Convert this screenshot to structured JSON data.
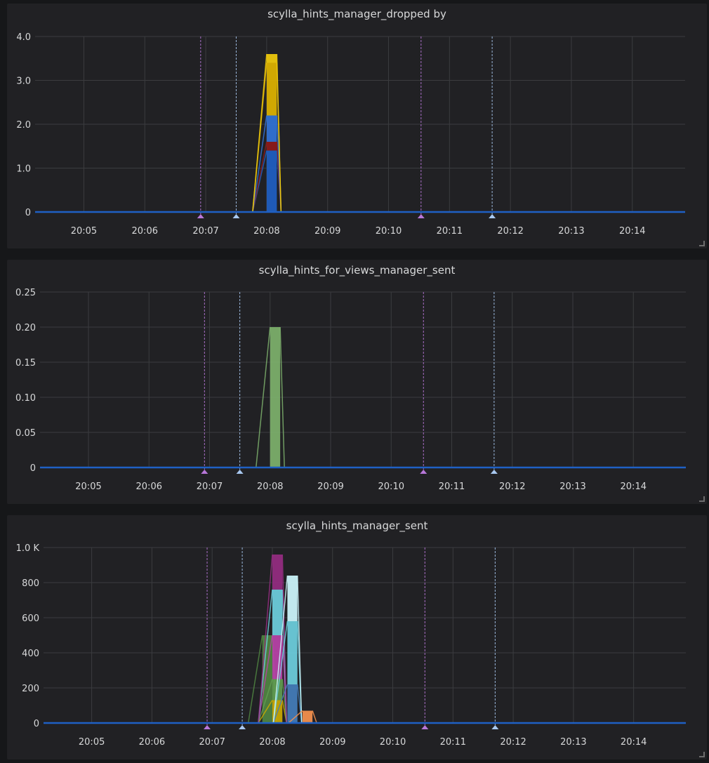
{
  "panels": [
    {
      "title": "scylla_hints_manager_dropped by"
    },
    {
      "title": "scylla_hints_for_views_manager_sent"
    },
    {
      "title": "scylla_hints_manager_sent"
    }
  ],
  "colors": {
    "panel_bg": "#212124",
    "page_bg": "#161719",
    "grid": "#3b3c3f",
    "text": "#d8d9da",
    "baseline": "#1f60c4",
    "annotation_purple": "#b877d9",
    "annotation_blue": "#a8c8f0"
  },
  "chart_data": [
    {
      "type": "area",
      "title": "scylla_hints_manager_dropped by",
      "x_ticks": [
        "20:05",
        "20:06",
        "20:07",
        "20:08",
        "20:09",
        "20:10",
        "20:11",
        "20:12",
        "20:13",
        "20:14"
      ],
      "y_ticks": [
        "0",
        "1.0",
        "2.0",
        "3.0",
        "4.0"
      ],
      "ylim": [
        0,
        4.0
      ],
      "xlim": [
        "20:04:12",
        "20:14:52"
      ],
      "annotations": [
        {
          "time": "20:06:55",
          "color": "purple"
        },
        {
          "time": "20:07:30",
          "color": "blue"
        },
        {
          "time": "20:10:32",
          "color": "purple"
        },
        {
          "time": "20:11:42",
          "color": "blue"
        }
      ],
      "bands": [
        {
          "start": "20:08:00",
          "end": "20:08:10",
          "from": 0,
          "to": 1.4,
          "color": "#1f60c4"
        },
        {
          "start": "20:08:00",
          "end": "20:08:10",
          "from": 1.4,
          "to": 1.6,
          "color": "#8f1a1a"
        },
        {
          "start": "20:08:00",
          "end": "20:08:10",
          "from": 1.6,
          "to": 2.2,
          "color": "#3274d9"
        },
        {
          "start": "20:08:00",
          "end": "20:08:10",
          "from": 2.2,
          "to": 3.4,
          "color": "#e0b400"
        },
        {
          "start": "20:08:00",
          "end": "20:08:10",
          "from": 3.4,
          "to": 3.6,
          "color": "#f2cc0c"
        }
      ]
    },
    {
      "type": "area",
      "title": "scylla_hints_for_views_manager_sent",
      "x_ticks": [
        "20:05",
        "20:06",
        "20:07",
        "20:08",
        "20:09",
        "20:10",
        "20:11",
        "20:12",
        "20:13",
        "20:14"
      ],
      "y_ticks": [
        "0",
        "0.05",
        "0.10",
        "0.15",
        "0.20",
        "0.25"
      ],
      "ylim": [
        0,
        0.25
      ],
      "xlim": [
        "20:04:12",
        "20:14:52"
      ],
      "annotations": [
        {
          "time": "20:06:55",
          "color": "purple"
        },
        {
          "time": "20:07:30",
          "color": "blue"
        },
        {
          "time": "20:10:32",
          "color": "purple"
        },
        {
          "time": "20:11:42",
          "color": "blue"
        }
      ],
      "bands": [
        {
          "start": "20:08:00",
          "end": "20:08:10",
          "from": 0,
          "to": 0.2,
          "color": "#7eb26d"
        }
      ]
    },
    {
      "type": "area",
      "title": "scylla_hints_manager_sent",
      "x_ticks": [
        "20:05",
        "20:06",
        "20:07",
        "20:08",
        "20:09",
        "20:10",
        "20:11",
        "20:12",
        "20:13",
        "20:14"
      ],
      "y_ticks": [
        "0",
        "200",
        "400",
        "600",
        "800",
        "1.0 K"
      ],
      "ylim": [
        0,
        1000
      ],
      "xlim": [
        "20:04:12",
        "20:14:52"
      ],
      "annotations": [
        {
          "time": "20:06:55",
          "color": "purple"
        },
        {
          "time": "20:07:30",
          "color": "blue"
        },
        {
          "time": "20:10:32",
          "color": "purple"
        },
        {
          "time": "20:11:42",
          "color": "blue"
        }
      ],
      "bands": [
        {
          "start": "20:07:50",
          "end": "20:08:00",
          "from": 0,
          "to": 500,
          "color": "#508642"
        },
        {
          "start": "20:08:00",
          "end": "20:08:10",
          "from": 0,
          "to": 130,
          "color": "#ccaa00"
        },
        {
          "start": "20:08:00",
          "end": "20:08:10",
          "from": 130,
          "to": 250,
          "color": "#629e51"
        },
        {
          "start": "20:08:00",
          "end": "20:08:10",
          "from": 250,
          "to": 500,
          "color": "#ba43a9"
        },
        {
          "start": "20:08:00",
          "end": "20:08:10",
          "from": 500,
          "to": 760,
          "color": "#6ed0e0"
        },
        {
          "start": "20:08:00",
          "end": "20:08:10",
          "from": 760,
          "to": 960,
          "color": "#962d82"
        },
        {
          "start": "20:08:15",
          "end": "20:08:25",
          "from": 0,
          "to": 220,
          "color": "#447ebc"
        },
        {
          "start": "20:08:15",
          "end": "20:08:25",
          "from": 220,
          "to": 580,
          "color": "#6ed0e0"
        },
        {
          "start": "20:08:15",
          "end": "20:08:25",
          "from": 580,
          "to": 840,
          "color": "#cffaff"
        },
        {
          "start": "20:08:30",
          "end": "20:08:40",
          "from": 0,
          "to": 70,
          "color": "#f9934e"
        }
      ]
    }
  ]
}
